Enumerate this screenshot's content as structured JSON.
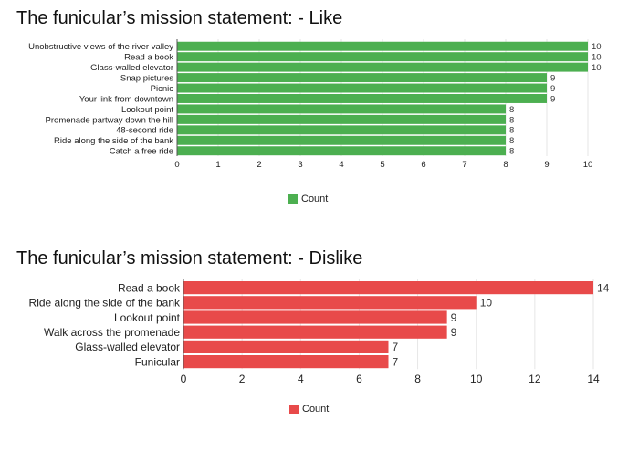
{
  "chart_data": [
    {
      "type": "bar",
      "orientation": "horizontal",
      "title": "The funicular’s mission statement: - Like",
      "categories": [
        "Unobstructive views of the river valley",
        "Read a book",
        "Glass-walled elevator",
        "Snap pictures",
        "Picnic",
        "Your link from downtown",
        "Lookout point",
        "Promenade partway down the hill",
        "48-second ride",
        "Ride along the side of the bank",
        "Catch a free ride"
      ],
      "series": [
        {
          "name": "Count",
          "color": "#4caf50",
          "values": [
            10,
            10,
            10,
            9,
            9,
            9,
            8,
            8,
            8,
            8,
            8
          ]
        }
      ],
      "xlim": [
        0,
        10
      ],
      "xticks": [
        0,
        1,
        2,
        3,
        4,
        5,
        6,
        7,
        8,
        9,
        10
      ],
      "grid": true,
      "legend_position": "bottom"
    },
    {
      "type": "bar",
      "orientation": "horizontal",
      "title": "The funicular’s mission statement: - Dislike",
      "categories": [
        "Read a book",
        "Ride along the side of the bank",
        "Lookout point",
        "Walk across the promenade",
        "Glass-walled elevator",
        "Funicular"
      ],
      "series": [
        {
          "name": "Count",
          "color": "#e84a4a",
          "values": [
            14,
            10,
            9,
            9,
            7,
            7
          ]
        }
      ],
      "xlim": [
        0,
        14
      ],
      "xticks": [
        0,
        2,
        4,
        6,
        8,
        10,
        12,
        14
      ],
      "grid": true,
      "legend_position": "bottom"
    }
  ]
}
